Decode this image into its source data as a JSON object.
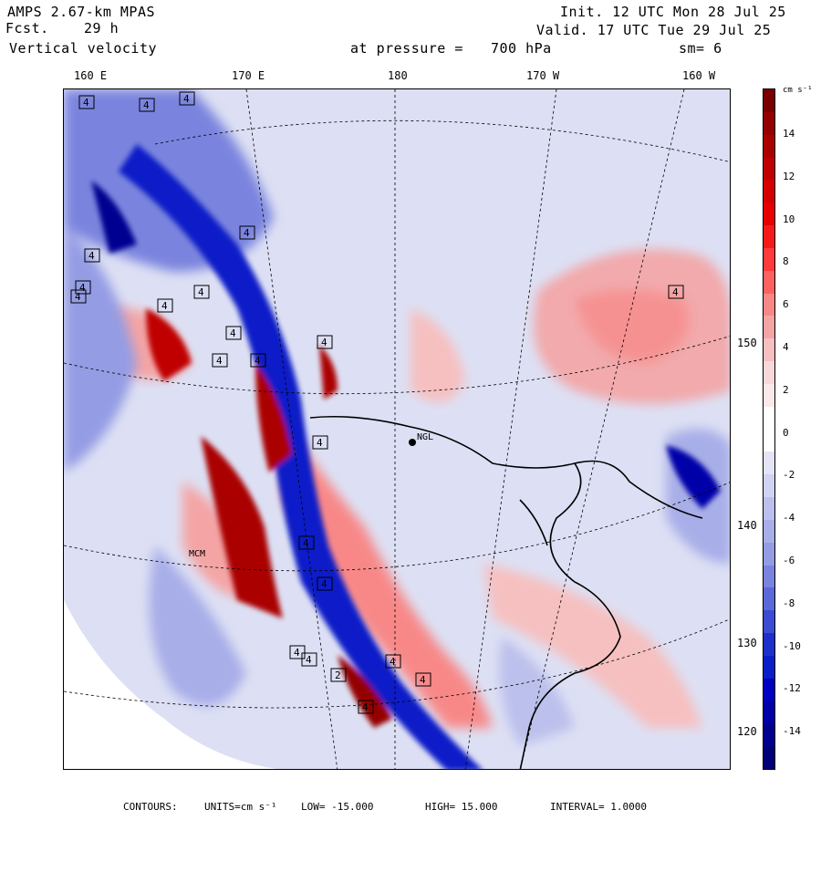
{
  "header": {
    "model": "AMPS 2.67-km MPAS",
    "fcst_label": "Fcst.",
    "fcst_value": "29 h",
    "field": "Vertical velocity",
    "init": "Init. 12 UTC Mon 28 Jul 25",
    "valid": "Valid. 17 UTC Tue 29 Jul 25",
    "pressure_label": "at pressure =",
    "pressure_value": "700 hPa",
    "smoothing": "sm= 6"
  },
  "longitude_labels": [
    "160 E",
    "170 E",
    "180",
    "170 W",
    "160 W"
  ],
  "latitude_labels": [
    "150 W",
    "140 W",
    "130 W",
    "120 W"
  ],
  "stations": [
    "MCM",
    "NGL"
  ],
  "colorbar": {
    "units": "cm s⁻¹",
    "labels": [
      "14",
      "12",
      "10",
      "8",
      "6",
      "4",
      "2",
      "0",
      "-2",
      "-4",
      "-6",
      "-8",
      "-10",
      "-12",
      "-14"
    ],
    "colors": [
      "#7a0000",
      "#940000",
      "#aa0000",
      "#c00000",
      "#d40000",
      "#e60000",
      "#f41a1a",
      "#ff3a3a",
      "#ff6060",
      "#f88888",
      "#f4a4a4",
      "#f6c0c0",
      "#f8d8d8",
      "#fbe8e8",
      "#ffffff",
      "#ffffff",
      "#e4e4f4",
      "#d0d4f0",
      "#bcc0ec",
      "#a8aee8",
      "#949ce4",
      "#7a84de",
      "#5c68d8",
      "#3c4cd2",
      "#1e30cc",
      "#0a1ec8",
      "#0000c0",
      "#0000a8",
      "#000090",
      "#000078"
    ]
  },
  "footer": {
    "contours": "CONTOURS:",
    "units": "UNITS=cm s⁻¹",
    "low": "LOW= -15.000",
    "high": "HIGH= 15.000",
    "interval": "INTERVAL= 1.0000"
  },
  "contour_values": [
    "4",
    "4",
    "4",
    "4",
    "4",
    "4",
    "4",
    "4",
    "4",
    "4",
    "4",
    "4",
    "4",
    "4",
    "4",
    "4",
    "4",
    "4",
    "2",
    "4",
    "4",
    "4",
    "4"
  ]
}
